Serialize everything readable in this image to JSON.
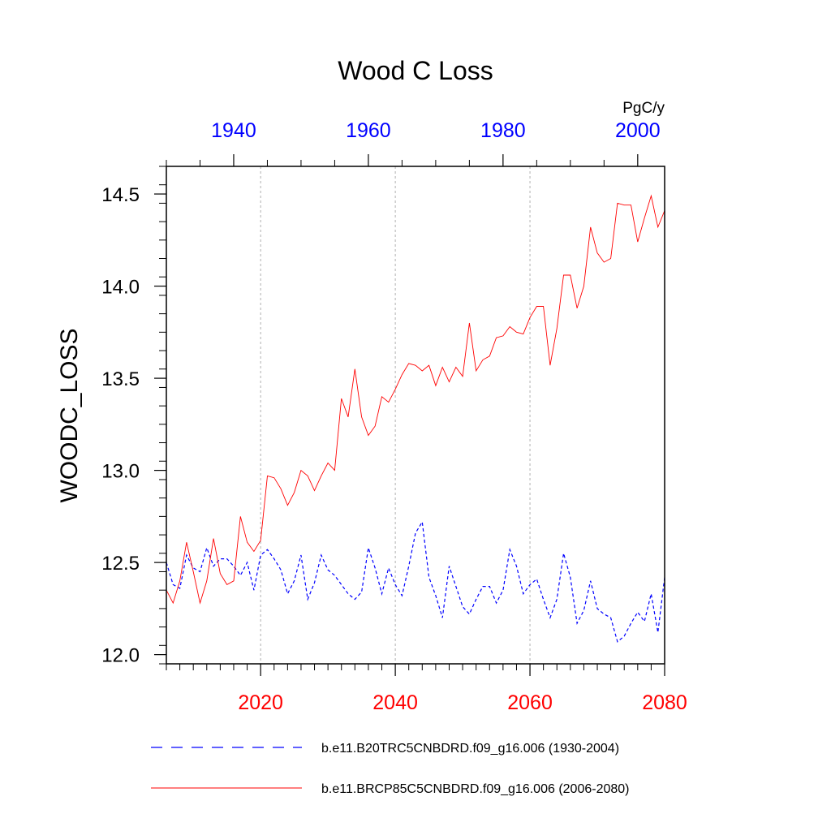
{
  "chart_data": {
    "type": "line",
    "title": "Wood C Loss",
    "ylabel": "WOODC_LOSS",
    "units": "PgC/y",
    "ylim": [
      11.95,
      14.65
    ],
    "yticks": [
      "12.0",
      "12.5",
      "13.0",
      "13.5",
      "14.0",
      "14.5"
    ],
    "bottom_axis": {
      "range": [
        2006,
        2080
      ],
      "ticks": [
        "2020",
        "2040",
        "2060",
        "2080"
      ],
      "color": "#ff0000"
    },
    "top_axis": {
      "range": [
        1930,
        2004
      ],
      "ticks": [
        "1940",
        "1960",
        "1980",
        "2000"
      ],
      "color": "#0000ff"
    },
    "grid": "vertical-dotted",
    "series": [
      {
        "name": "b.e11.B20TRC5CNBDRD.f09_g16.006 (1930-2004)",
        "color": "#0000ff",
        "dash": "dashed",
        "axis": "top",
        "x": [
          1930,
          1931,
          1932,
          1933,
          1934,
          1935,
          1936,
          1937,
          1938,
          1939,
          1940,
          1941,
          1942,
          1943,
          1944,
          1945,
          1946,
          1947,
          1948,
          1949,
          1950,
          1951,
          1952,
          1953,
          1954,
          1955,
          1956,
          1957,
          1958,
          1959,
          1960,
          1961,
          1962,
          1963,
          1964,
          1965,
          1966,
          1967,
          1968,
          1969,
          1970,
          1971,
          1972,
          1973,
          1974,
          1975,
          1976,
          1977,
          1978,
          1979,
          1980,
          1981,
          1982,
          1983,
          1984,
          1985,
          1986,
          1987,
          1988,
          1989,
          1990,
          1991,
          1992,
          1993,
          1994,
          1995,
          1996,
          1997,
          1998,
          1999,
          2000,
          2001,
          2002,
          2003,
          2004
        ],
        "values": [
          12.5,
          12.38,
          12.36,
          12.54,
          12.47,
          12.45,
          12.58,
          12.48,
          12.52,
          12.52,
          12.48,
          12.43,
          12.5,
          12.35,
          12.54,
          12.57,
          12.52,
          12.46,
          12.33,
          12.4,
          12.54,
          12.3,
          12.39,
          12.54,
          12.46,
          12.43,
          12.38,
          12.33,
          12.3,
          12.34,
          12.58,
          12.47,
          12.33,
          12.47,
          12.38,
          12.32,
          12.48,
          12.66,
          12.72,
          12.42,
          12.32,
          12.2,
          12.48,
          12.37,
          12.26,
          12.22,
          12.3,
          12.37,
          12.37,
          12.28,
          12.35,
          12.57,
          12.48,
          12.33,
          12.38,
          12.41,
          12.3,
          12.2,
          12.3,
          12.55,
          12.42,
          12.17,
          12.24,
          12.4,
          12.25,
          12.22,
          12.2,
          12.07,
          12.1,
          12.17,
          12.23,
          12.18,
          12.33,
          12.12,
          12.42
        ]
      },
      {
        "name": "b.e11.BRCP85C5CNBDRD.f09_g16.006 (2006-2080)",
        "color": "#ff0000",
        "dash": "solid",
        "axis": "bottom",
        "x": [
          2006,
          2007,
          2008,
          2009,
          2010,
          2011,
          2012,
          2013,
          2014,
          2015,
          2016,
          2017,
          2018,
          2019,
          2020,
          2021,
          2022,
          2023,
          2024,
          2025,
          2026,
          2027,
          2028,
          2029,
          2030,
          2031,
          2032,
          2033,
          2034,
          2035,
          2036,
          2037,
          2038,
          2039,
          2040,
          2041,
          2042,
          2043,
          2044,
          2045,
          2046,
          2047,
          2048,
          2049,
          2050,
          2051,
          2052,
          2053,
          2054,
          2055,
          2056,
          2057,
          2058,
          2059,
          2060,
          2061,
          2062,
          2063,
          2064,
          2065,
          2066,
          2067,
          2068,
          2069,
          2070,
          2071,
          2072,
          2073,
          2074,
          2075,
          2076,
          2077,
          2078,
          2079,
          2080
        ],
        "values": [
          12.35,
          12.28,
          12.4,
          12.61,
          12.45,
          12.28,
          12.4,
          12.63,
          12.44,
          12.38,
          12.4,
          12.75,
          12.61,
          12.56,
          12.62,
          12.97,
          12.96,
          12.9,
          12.81,
          12.88,
          13.0,
          12.97,
          12.89,
          12.97,
          13.04,
          13.0,
          13.39,
          13.29,
          13.55,
          13.29,
          13.19,
          13.24,
          13.4,
          13.37,
          13.44,
          13.52,
          13.58,
          13.57,
          13.54,
          13.57,
          13.46,
          13.56,
          13.48,
          13.56,
          13.51,
          13.8,
          13.54,
          13.6,
          13.62,
          13.72,
          13.73,
          13.78,
          13.75,
          13.74,
          13.83,
          13.89,
          13.89,
          13.57,
          13.77,
          14.06,
          14.06,
          13.88,
          14.0,
          14.32,
          14.18,
          14.13,
          14.15,
          14.45,
          14.44,
          14.44,
          14.24,
          14.37,
          14.49,
          14.32,
          14.41
        ]
      }
    ],
    "legend": "bottom"
  }
}
